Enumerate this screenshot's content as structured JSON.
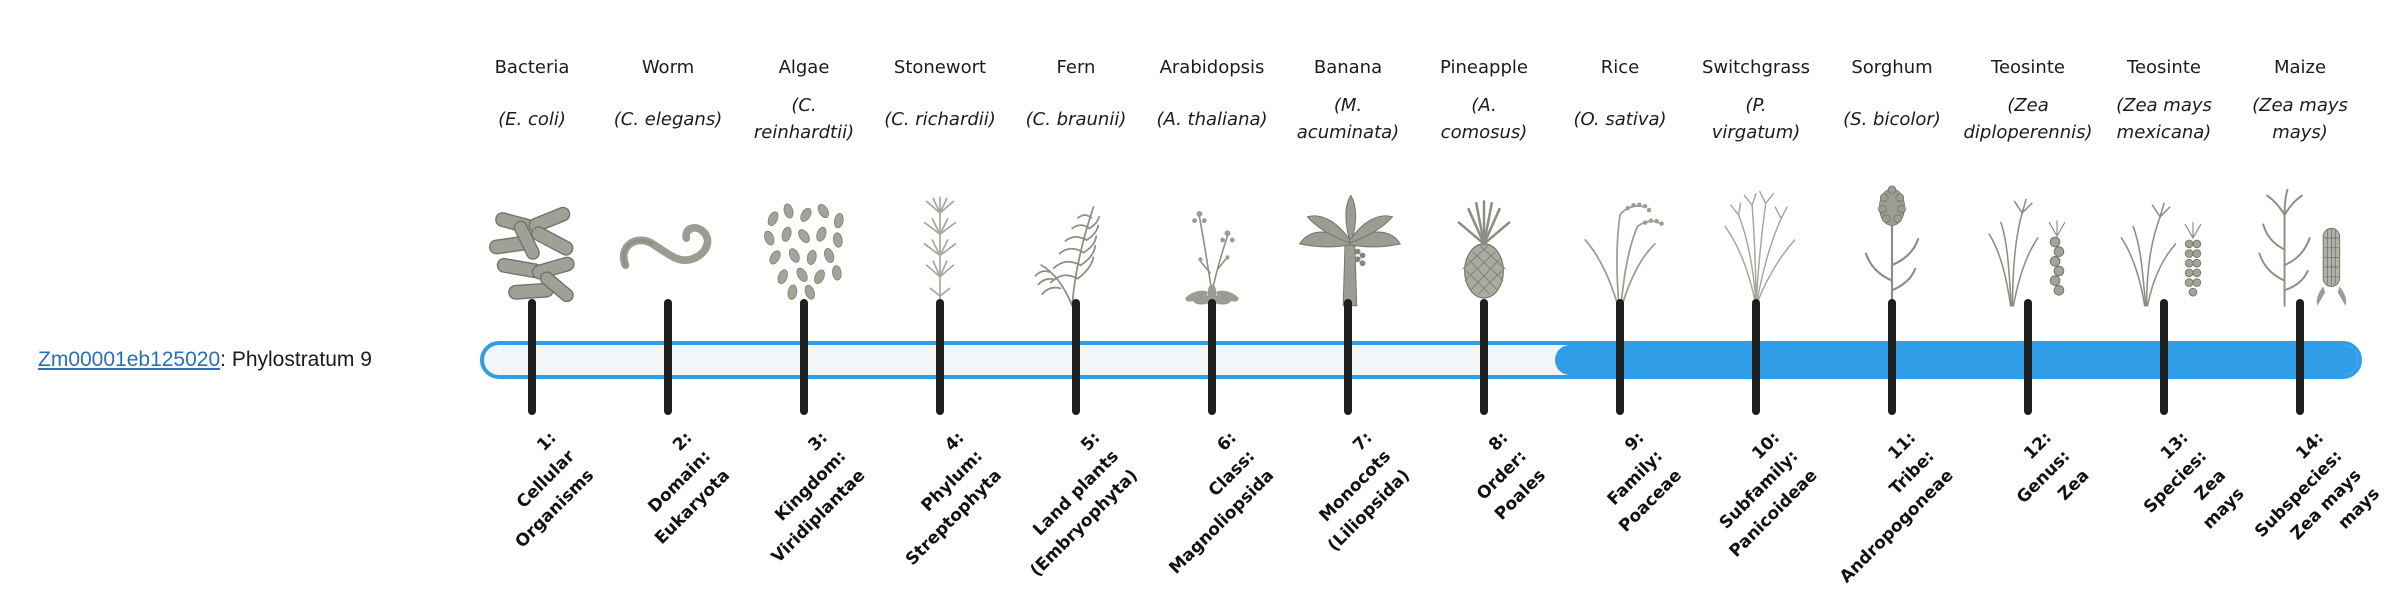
{
  "gene": {
    "id": "Zm00001eb125020",
    "suffix": ": Phylostratum 9",
    "phylostratum": 9
  },
  "colors": {
    "accent_blue": "#2f9de8",
    "track": "#f3f6f8",
    "tick": "#1e1e1e",
    "link_blue": "#2a6fbb"
  },
  "timeline": {
    "filled_from_stratum": 9,
    "strata": [
      {
        "index": 1,
        "common_name": "Bacteria",
        "scientific_name": "(E. coli)",
        "stratum_label": "1:\nCellular\nOrganisms",
        "icon": "bacteria-icon"
      },
      {
        "index": 2,
        "common_name": "Worm",
        "scientific_name": "(C. elegans)",
        "stratum_label": "2:\nDomain:\nEukaryota",
        "icon": "worm-icon"
      },
      {
        "index": 3,
        "common_name": "Algae",
        "scientific_name": "(C.\nreinhardtii)",
        "stratum_label": "3:\nKingdom:\nViridiplantae",
        "icon": "algae-icon"
      },
      {
        "index": 4,
        "common_name": "Stonewort",
        "scientific_name": "(C. richardii)",
        "stratum_label": "4:\nPhylum:\nStreptophyta",
        "icon": "stonewort-icon"
      },
      {
        "index": 5,
        "common_name": "Fern",
        "scientific_name": "(C. braunii)",
        "stratum_label": "5:\nLand plants\n(Embryophyta)",
        "icon": "fern-icon"
      },
      {
        "index": 6,
        "common_name": "Arabidopsis",
        "scientific_name": "(A. thaliana)",
        "stratum_label": "6:\nClass:\nMagnoliopsida",
        "icon": "arabidopsis-icon"
      },
      {
        "index": 7,
        "common_name": "Banana",
        "scientific_name": "(M.\nacuminata)",
        "stratum_label": "7:\nMonocots\n(Liliopsida)",
        "icon": "banana-icon"
      },
      {
        "index": 8,
        "common_name": "Pineapple",
        "scientific_name": "(A.\ncomosus)",
        "stratum_label": "8:\nOrder:\nPoales",
        "icon": "pineapple-icon"
      },
      {
        "index": 9,
        "common_name": "Rice",
        "scientific_name": "(O. sativa)",
        "stratum_label": "9:\nFamily:\nPoaceae",
        "icon": "rice-icon"
      },
      {
        "index": 10,
        "common_name": "Switchgrass",
        "scientific_name": "(P.\nvirgatum)",
        "stratum_label": "10:\nSubfamily:\nPanicoideae",
        "icon": "switchgrass-icon"
      },
      {
        "index": 11,
        "common_name": "Sorghum",
        "scientific_name": "(S. bicolor)",
        "stratum_label": "11:\nTribe:\nAndropogoneae",
        "icon": "sorghum-icon"
      },
      {
        "index": 12,
        "common_name": "Teosinte",
        "scientific_name": "(Zea\ndiploperennis)",
        "stratum_label": "12:\nGenus:\nZea",
        "icon": "teosinte-diploperennis-icon"
      },
      {
        "index": 13,
        "common_name": "Teosinte",
        "scientific_name": "(Zea mays\nmexicana)",
        "stratum_label": "13:\nSpecies:\nZea\nmays",
        "icon": "teosinte-mexicana-icon"
      },
      {
        "index": 14,
        "common_name": "Maize",
        "scientific_name": "(Zea mays\nmays)",
        "stratum_label": "14:\nSubspecies:\nZea mays\nmays",
        "icon": "maize-icon"
      }
    ]
  }
}
